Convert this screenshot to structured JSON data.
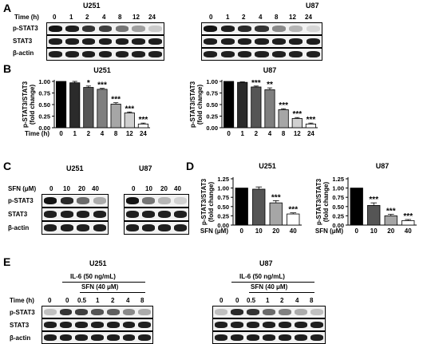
{
  "panels": {
    "A": {
      "label": "A",
      "time_label": "Time (h)",
      "times": [
        "0",
        "1",
        "2",
        "4",
        "8",
        "12",
        "24"
      ],
      "rows": [
        "p-STAT3",
        "STAT3",
        "β-actin"
      ],
      "left_title": "U251",
      "right_title": "U87",
      "bands": {
        "pstat3_u251": [
          1,
          0.95,
          0.85,
          0.8,
          0.55,
          0.35,
          0.15
        ],
        "pstat3_u87": [
          1,
          0.95,
          0.9,
          0.85,
          0.45,
          0.25,
          0.1
        ]
      }
    },
    "B": {
      "label": "B",
      "time_label": "Time (h)"
    },
    "C": {
      "label": "C",
      "sfn_label": "SFN (μM)",
      "doses": [
        "0",
        "10",
        "20",
        "40"
      ],
      "rows": [
        "p-STAT3",
        "STAT3",
        "β-actin"
      ],
      "left_title": "U251",
      "right_title": "U87",
      "bands": {
        "pstat3_u251": [
          1,
          0.9,
          0.6,
          0.3
        ],
        "pstat3_u87": [
          1,
          0.55,
          0.25,
          0.12
        ]
      }
    },
    "D": {
      "label": "D",
      "sfn_label": "SFN (μM)"
    },
    "E": {
      "label": "E",
      "left_title": "U251",
      "right_title": "U87",
      "il6_label": "IL-6 (50 ng/mL)",
      "sfn_label": "SFN (40 μM)",
      "time_label": "Time (h)",
      "times": [
        "0",
        "0",
        "0.5",
        "1",
        "2",
        "4",
        "8"
      ],
      "rows": [
        "p-STAT3",
        "STAT3",
        "β-actin"
      ],
      "bands": {
        "pstat3_u251": [
          0.2,
          0.85,
          0.8,
          0.7,
          0.65,
          0.45,
          0.3
        ],
        "pstat3_u87": [
          0.2,
          0.9,
          0.85,
          0.6,
          0.5,
          0.3,
          0.2
        ]
      }
    }
  },
  "chart_data": [
    {
      "type": "bar",
      "title": "U251",
      "ylabel": "p-STAT3/STAT3 (fold change)",
      "xlabel": "Time (h)",
      "categories": [
        "0",
        "1",
        "2",
        "4",
        "8",
        "12",
        "24"
      ],
      "values": [
        1.0,
        0.97,
        0.87,
        0.83,
        0.51,
        0.32,
        0.08
      ],
      "errors": [
        0.0,
        0.03,
        0.03,
        0.02,
        0.03,
        0.02,
        0.02
      ],
      "significance": [
        "",
        "",
        "*",
        "***",
        "***",
        "***",
        "***"
      ],
      "colors": [
        "#000000",
        "#2b2b2b",
        "#555555",
        "#7f7f7f",
        "#a6a6a6",
        "#d0d0d0",
        "#ffffff"
      ],
      "ylim": [
        0,
        1.0
      ],
      "yticks": [
        "0.00",
        "0.25",
        "0.50",
        "0.75",
        "1.00"
      ]
    },
    {
      "type": "bar",
      "title": "U87",
      "ylabel": "p-STAT3/STAT3 (fold change)",
      "xlabel": "Time (h)",
      "categories": [
        "0",
        "1",
        "2",
        "4",
        "8",
        "12",
        "24"
      ],
      "values": [
        1.0,
        0.98,
        0.88,
        0.82,
        0.39,
        0.2,
        0.08
      ],
      "errors": [
        0.0,
        0.01,
        0.02,
        0.04,
        0.02,
        0.02,
        0.02
      ],
      "significance": [
        "",
        "",
        "***",
        "**",
        "***",
        "***",
        "***"
      ],
      "colors": [
        "#000000",
        "#2b2b2b",
        "#555555",
        "#7f7f7f",
        "#a6a6a6",
        "#d0d0d0",
        "#ffffff"
      ],
      "ylim": [
        0,
        1.0
      ],
      "yticks": [
        "0.00",
        "0.25",
        "0.50",
        "0.75",
        "1.00"
      ]
    },
    {
      "type": "bar",
      "title": "U251",
      "ylabel": "p-STAT3/STAT3 (fold change)",
      "xlabel": "SFN (μM)",
      "categories": [
        "0",
        "10",
        "20",
        "40"
      ],
      "values": [
        1.0,
        0.97,
        0.6,
        0.3
      ],
      "errors": [
        0.0,
        0.06,
        0.06,
        0.03
      ],
      "significance": [
        "",
        "",
        "***",
        "***"
      ],
      "colors": [
        "#000000",
        "#555555",
        "#a6a6a6",
        "#ffffff"
      ],
      "ylim": [
        0,
        1.25
      ],
      "yticks": [
        "0.00",
        "0.25",
        "0.50",
        "0.75",
        "1.00",
        "1.25"
      ]
    },
    {
      "type": "bar",
      "title": "U87",
      "ylabel": "p-STAT3/STAT3 (fold change)",
      "xlabel": "SFN (μM)",
      "categories": [
        "0",
        "10",
        "20",
        "40"
      ],
      "values": [
        1.0,
        0.53,
        0.25,
        0.12
      ],
      "errors": [
        0.0,
        0.07,
        0.04,
        0.03
      ],
      "significance": [
        "",
        "***",
        "***",
        "***"
      ],
      "colors": [
        "#000000",
        "#555555",
        "#a6a6a6",
        "#ffffff"
      ],
      "ylim": [
        0,
        1.25
      ],
      "yticks": [
        "0.00",
        "0.25",
        "0.50",
        "0.75",
        "1.00",
        "1.25"
      ]
    }
  ]
}
